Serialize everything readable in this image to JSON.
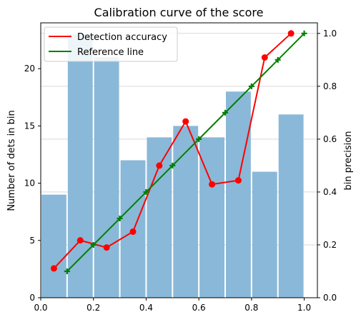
{
  "chart_data": {
    "type": "bar+line",
    "title": "Calibration curve of the score",
    "xlabel": "",
    "ylabel_left": "Number of dets in bin",
    "ylabel_right": "bin precision",
    "xlim": [
      0.0,
      1.05
    ],
    "ylim_left": [
      0,
      24
    ],
    "ylim_right": [
      0.0,
      1.04
    ],
    "x_ticks": [
      "0.0",
      "0.2",
      "0.4",
      "0.6",
      "0.8",
      "1.0"
    ],
    "y_left_ticks": [
      "0",
      "5",
      "10",
      "15",
      "20"
    ],
    "y_right_ticks": [
      "0.0",
      "0.2",
      "0.4",
      "0.6",
      "0.8",
      "1.0"
    ],
    "grid": "horizontal (right axis)",
    "legend_position": "top-left",
    "bars": {
      "name": "",
      "color": "#8ab8d8",
      "bin_width": 0.1,
      "bin_starts": [
        0.0,
        0.1,
        0.2,
        0.3,
        0.4,
        0.5,
        0.6,
        0.7,
        0.8,
        0.9
      ],
      "values": [
        9,
        23,
        21,
        12,
        14,
        15,
        14,
        18,
        11,
        16
      ]
    },
    "series": [
      {
        "name": "Detection accuracy",
        "color": "#ff0000",
        "marker": "circle",
        "x": [
          0.05,
          0.15,
          0.25,
          0.35,
          0.45,
          0.55,
          0.65,
          0.75,
          0.85,
          0.95
        ],
        "y": [
          0.111,
          0.217,
          0.19,
          0.25,
          0.5,
          0.667,
          0.429,
          0.444,
          0.909,
          1.0
        ]
      },
      {
        "name": "Reference line",
        "color": "#008000",
        "marker": "plus",
        "x": [
          0.1,
          0.2,
          0.3,
          0.4,
          0.5,
          0.6,
          0.7,
          0.8,
          0.9,
          1.0
        ],
        "y": [
          0.1,
          0.2,
          0.3,
          0.4,
          0.5,
          0.6,
          0.7,
          0.8,
          0.9,
          1.0
        ]
      }
    ]
  }
}
